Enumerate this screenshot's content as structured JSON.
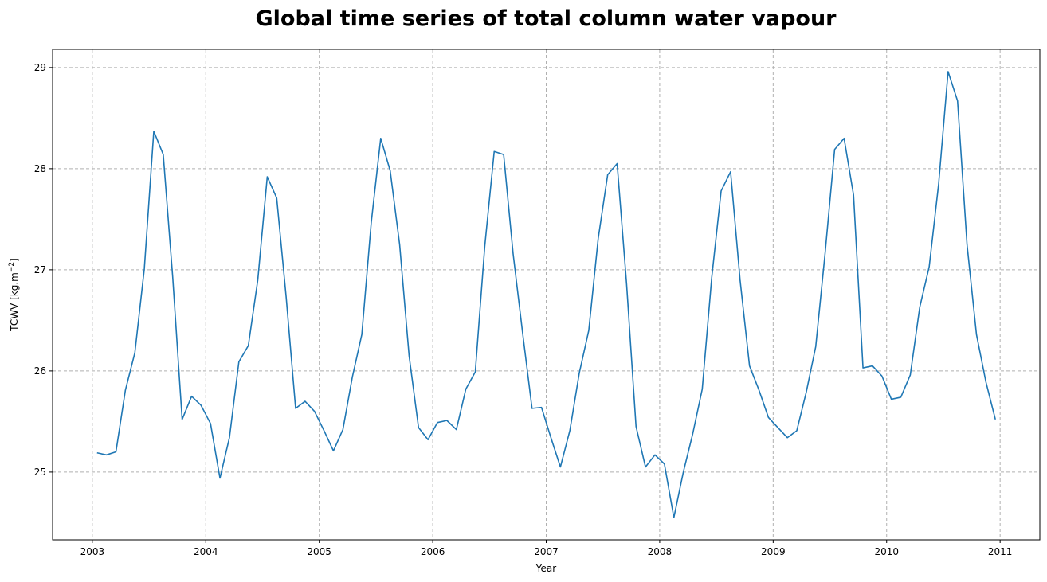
{
  "chart_data": {
    "type": "line",
    "title": "Global time series of total column water vapour",
    "xlabel": "Year",
    "ylabel_main": "TCWV [kg.m",
    "ylabel_sup": "−2",
    "ylabel_end": "]",
    "xlim": [
      2002.65,
      2011.35
    ],
    "ylim": [
      24.33,
      29.18
    ],
    "x_ticks": [
      2003,
      2004,
      2005,
      2006,
      2007,
      2008,
      2009,
      2010,
      2011
    ],
    "x_tick_labels": [
      "2003",
      "2004",
      "2005",
      "2006",
      "2007",
      "2008",
      "2009",
      "2010",
      "2011"
    ],
    "y_ticks": [
      25,
      26,
      27,
      28,
      29
    ],
    "y_tick_labels": [
      "25",
      "26",
      "27",
      "28",
      "29"
    ],
    "grid": true,
    "line_color": "#1f77b4",
    "grid_color": "#b0b0b0",
    "series": [
      {
        "x_start_year": 2003,
        "values": [
          25.19,
          25.17,
          25.2,
          25.81,
          26.18,
          27.01,
          28.37,
          28.14,
          26.93,
          25.52,
          25.75,
          25.66,
          25.48,
          24.94,
          25.34,
          26.09,
          26.25,
          26.9,
          27.92,
          27.71,
          26.73,
          25.63,
          25.7,
          25.6,
          25.41,
          25.21,
          25.42,
          25.94,
          26.36,
          27.47,
          28.3,
          27.98,
          27.25,
          26.15,
          25.44,
          25.32,
          25.49,
          25.51,
          25.42,
          25.82,
          25.99,
          27.23,
          28.17,
          28.14,
          27.16,
          26.38,
          25.63,
          25.64,
          25.34,
          25.05,
          25.41,
          25.98,
          26.4,
          27.31,
          27.94,
          28.05,
          26.86,
          25.45,
          25.05,
          25.17,
          25.08,
          24.55,
          25.0,
          25.38,
          25.82,
          26.92,
          27.78,
          27.97,
          26.9,
          26.05,
          25.81,
          25.54,
          25.44,
          25.34,
          25.41,
          25.79,
          26.24,
          27.17,
          28.19,
          28.3,
          27.74,
          26.03,
          26.05,
          25.95,
          25.72,
          25.74,
          25.96,
          26.63,
          27.03,
          27.85,
          28.96,
          28.67,
          27.25,
          26.36,
          25.89,
          25.52
        ]
      }
    ]
  }
}
